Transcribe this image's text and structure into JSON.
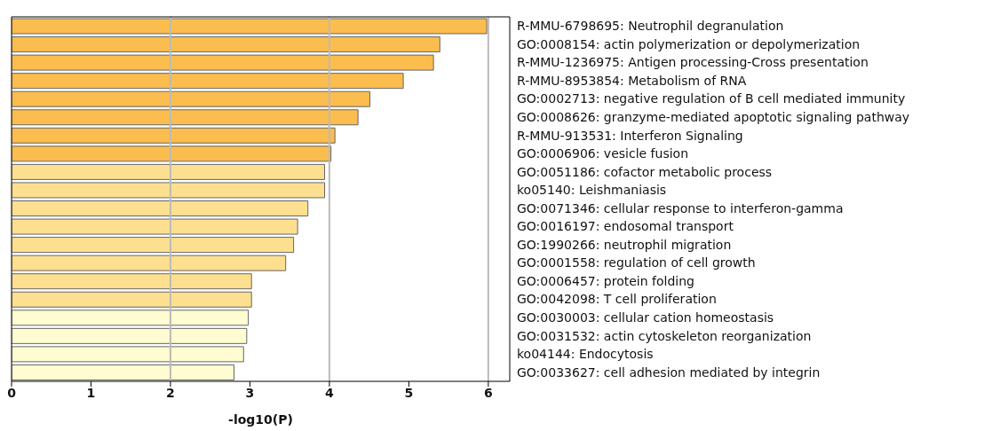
{
  "chart_data": {
    "type": "bar",
    "orientation": "horizontal",
    "xlabel": "-log10(P)",
    "categories": [
      "R-MMU-6798695: Neutrophil degranulation",
      "GO:0008154: actin polymerization or depolymerization",
      "R-MMU-1236975: Antigen processing-Cross presentation",
      "R-MMU-8953854: Metabolism of RNA",
      "GO:0002713: negative regulation of B cell mediated immunity",
      "GO:0008626: granzyme-mediated apoptotic signaling pathway",
      "R-MMU-913531: Interferon Signaling",
      "GO:0006906: vesicle fusion",
      "GO:0051186: cofactor metabolic process",
      "ko05140: Leishmaniasis",
      "GO:0071346: cellular response to interferon-gamma",
      "GO:0016197: endosomal transport",
      "GO:1990266: neutrophil migration",
      "GO:0001558: regulation of cell growth",
      "GO:0006457: protein folding",
      "GO:0042098: T cell proliferation",
      "GO:0030003: cellular cation homeostasis",
      "GO:0031532: actin cytoskeleton reorganization",
      "ko04144: Endocytosis",
      "GO:0033627: cell adhesion mediated by integrin"
    ],
    "values": [
      5.98,
      5.39,
      5.31,
      4.93,
      4.51,
      4.36,
      4.07,
      4.02,
      3.94,
      3.94,
      3.73,
      3.6,
      3.55,
      3.45,
      3.02,
      3.02,
      2.98,
      2.96,
      2.92,
      2.8
    ],
    "colors": [
      "#fbbd4e",
      "#fbbd4e",
      "#fbbd4e",
      "#fbbd4e",
      "#fbbd4e",
      "#fbbd4e",
      "#fbbd4e",
      "#fbbd4e",
      "#fde08f",
      "#fde08f",
      "#fde08f",
      "#fde08f",
      "#fde08f",
      "#fde08f",
      "#fde08f",
      "#fde08f",
      "#fefcd0",
      "#fefcd0",
      "#fefcd0",
      "#fefcd0"
    ],
    "xlim": [
      0,
      6.27
    ],
    "xticks": [
      0,
      1,
      2,
      3,
      4,
      5,
      6
    ],
    "ref_lines": [
      {
        "axis": "x",
        "value": 2,
        "color": "#bbbbbb"
      },
      {
        "axis": "x",
        "value": 4,
        "color": "#bbbbbb"
      },
      {
        "axis": "x",
        "value": 6,
        "color": "#bbbbbb"
      }
    ]
  }
}
